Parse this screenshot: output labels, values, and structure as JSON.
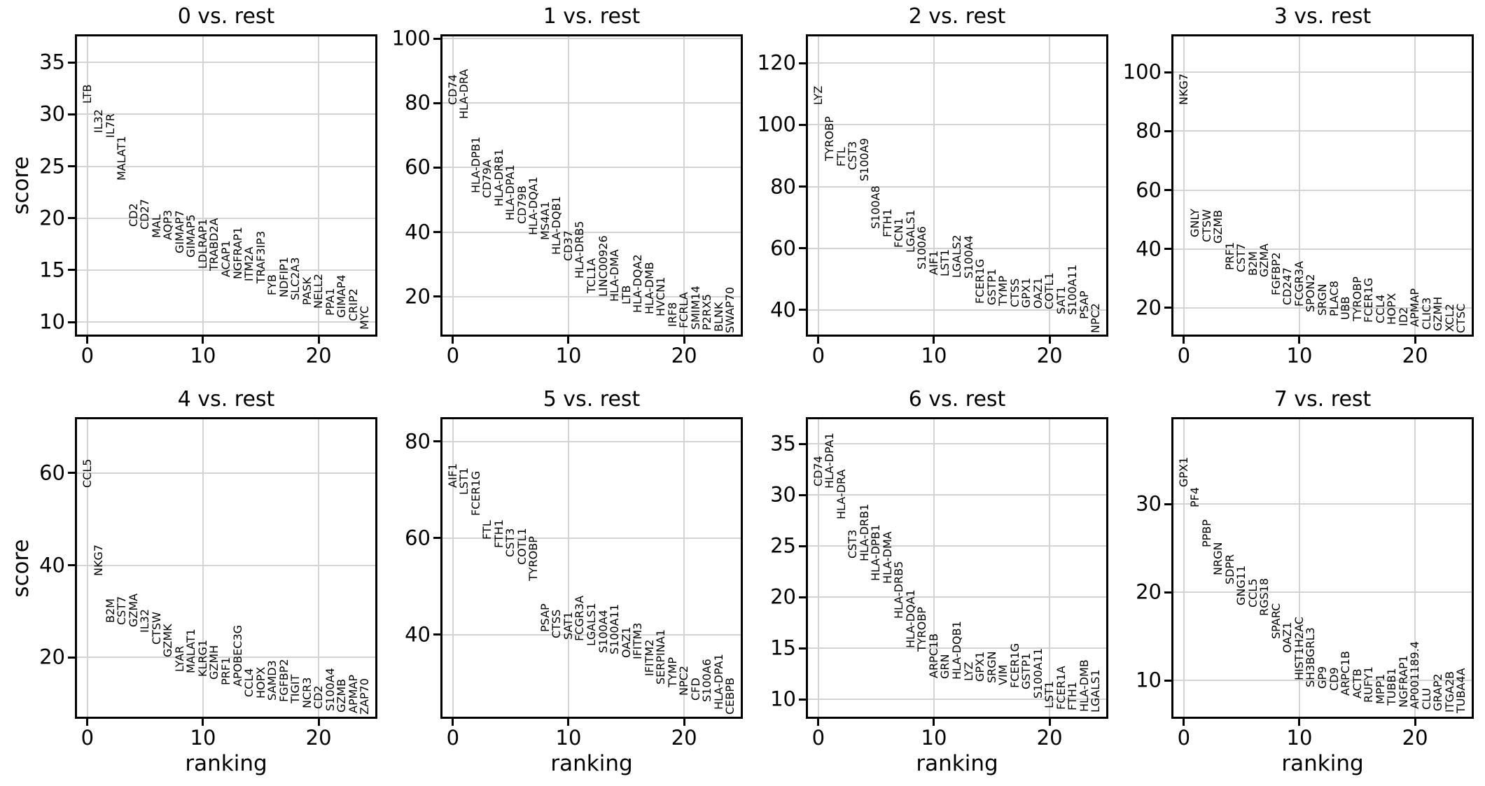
{
  "figure": {
    "background": "#ffffff",
    "text_color": "#000000",
    "grid_color": "#d3d3d3",
    "spine_color": "#000000"
  },
  "axis_labels": {
    "ylabel": "score",
    "xlabel": "ranking"
  },
  "chart_data": [
    {
      "type": "scatter",
      "marker": "text-labels",
      "title": "0 vs. rest",
      "xlabel": "",
      "ylabel": "score",
      "grid": true,
      "xticks": [
        0,
        10,
        20
      ],
      "yticks": [
        10,
        15,
        20,
        25,
        30,
        35
      ],
      "xlim": [
        -0.9,
        24.9
      ],
      "ylim": [
        8.8,
        37.5
      ],
      "genes": [
        "LTB",
        "IL32",
        "IL7R",
        "MALAT1",
        "CD2",
        "CD27",
        "MAL",
        "AQP3",
        "GIMAP7",
        "GIMAP5",
        "LDLRAP1",
        "TRABD2A",
        "ACAP1",
        "NGFRAP1",
        "ITM2A",
        "TRAF3IP3",
        "FYB",
        "NDFIP1",
        "SLC2A3",
        "PASK",
        "NELL2",
        "PPA1",
        "GIMAP4",
        "CRIP2",
        "MYC"
      ],
      "scores": [
        31.0,
        28.2,
        27.7,
        23.6,
        19.2,
        18.9,
        18.1,
        17.9,
        16.6,
        16.2,
        15.1,
        14.9,
        14.3,
        14.1,
        13.9,
        13.7,
        12.6,
        12.4,
        12.1,
        11.6,
        11.3,
        10.6,
        10.4,
        10.1,
        9.3
      ]
    },
    {
      "type": "scatter",
      "marker": "text-labels",
      "title": "1 vs. rest",
      "xlabel": "",
      "ylabel": "",
      "grid": true,
      "xticks": [
        0,
        10,
        20
      ],
      "yticks": [
        20,
        40,
        60,
        80,
        100
      ],
      "xlim": [
        -0.9,
        24.9
      ],
      "ylim": [
        8.2,
        100.7
      ],
      "genes": [
        "CD74",
        "HLA-DRA",
        "HLA-DPB1",
        "CD79A",
        "HLA-DRB1",
        "HLA-DPA1",
        "CD79B",
        "HLA-DQA1",
        "MS4A1",
        "HLA-DQB1",
        "CD37",
        "HLA-DRB5",
        "TCL1A",
        "LINC00926",
        "HLA-DMA",
        "LTB",
        "HLA-DQA2",
        "HLA-DMB",
        "HVCN1",
        "IRF8",
        "FCRLA",
        "SMIM14",
        "P2RX5",
        "BLNK",
        "SWAP70"
      ],
      "scores": [
        79.5,
        75.0,
        52.0,
        50.5,
        48.0,
        43.5,
        42.5,
        39.0,
        37.5,
        33.0,
        31.0,
        25.5,
        21.0,
        20.0,
        18.5,
        17.5,
        15.0,
        14.6,
        13.9,
        10.6,
        10.2,
        9.8,
        9.4,
        9.0,
        8.7
      ]
    },
    {
      "type": "scatter",
      "marker": "text-labels",
      "title": "2 vs. rest",
      "xlabel": "",
      "ylabel": "",
      "grid": true,
      "xticks": [
        0,
        10,
        20
      ],
      "yticks": [
        40,
        60,
        80,
        100,
        120
      ],
      "xlim": [
        -0.9,
        24.9
      ],
      "ylim": [
        32.0,
        128.7
      ],
      "genes": [
        "LYZ",
        "TYROBP",
        "FTL",
        "CST3",
        "S100A9",
        "S100A8",
        "FTH1",
        "FCN1",
        "LGALS1",
        "S100A6",
        "AIF1",
        "LST1",
        "LGALS2",
        "S100A4",
        "FCER1G",
        "GSTP1",
        "TYMP",
        "CTSS",
        "GPX1",
        "OAZ1",
        "COTL1",
        "SAT1",
        "S100A11",
        "PSAP",
        "NPC2"
      ],
      "scores": [
        106.5,
        88.3,
        86.4,
        85.3,
        81.8,
        66.2,
        63.5,
        60.2,
        58.5,
        53.2,
        51.3,
        50.9,
        50.5,
        50.1,
        41.9,
        41.5,
        41.2,
        40.8,
        40.6,
        40.4,
        40.1,
        38.6,
        38.3,
        37.0,
        32.5
      ]
    },
    {
      "type": "scatter",
      "marker": "text-labels",
      "title": "3 vs. rest",
      "xlabel": "",
      "ylabel": "",
      "grid": true,
      "xticks": [
        0,
        10,
        20
      ],
      "yticks": [
        20,
        40,
        60,
        80,
        100
      ],
      "xlim": [
        -0.9,
        24.9
      ],
      "ylim": [
        10.9,
        112.2
      ],
      "genes": [
        "NKG7",
        "GNLY",
        "CTSW",
        "GZMB",
        "PRF1",
        "CST7",
        "B2M",
        "GZMA",
        "FGFBP2",
        "CD247",
        "FCGR3A",
        "SPON2",
        "SRGN",
        "PLAC8",
        "UBB",
        "TYROBP",
        "FCER1G",
        "CCL4",
        "HOPX",
        "ID2",
        "APMAP",
        "CLIC3",
        "GZMH",
        "XCL2",
        "CTSC"
      ],
      "scores": [
        88.9,
        43.9,
        42.3,
        41.9,
        32.8,
        32.0,
        30.8,
        30.4,
        24.1,
        20.9,
        20.4,
        18.6,
        17.4,
        17.0,
        15.8,
        15.4,
        15.0,
        14.6,
        14.2,
        13.8,
        13.4,
        12.6,
        12.2,
        11.8,
        11.4
      ]
    },
    {
      "type": "scatter",
      "marker": "text-labels",
      "title": "4 vs. rest",
      "xlabel": "ranking",
      "ylabel": "score",
      "grid": true,
      "xticks": [
        0,
        10,
        20
      ],
      "yticks": [
        20,
        40,
        60
      ],
      "xlim": [
        -0.9,
        24.9
      ],
      "ylim": [
        7.1,
        71.7
      ],
      "genes": [
        "CCL5",
        "NKG7",
        "B2M",
        "CST7",
        "GZMA",
        "IL32",
        "CTSW",
        "GZMK",
        "LYAR",
        "MALAT1",
        "KLRG1",
        "GZMH",
        "PRF1",
        "APOBEC3G",
        "CCL4",
        "HOPX",
        "SAMD3",
        "FGFBP2",
        "TIGIT",
        "NCR3",
        "CD2",
        "S100A4",
        "GZMB",
        "APMAP",
        "ZAP70"
      ],
      "scores": [
        56.8,
        37.6,
        27.5,
        27.0,
        26.6,
        25.3,
        22.7,
        20.0,
        16.8,
        16.6,
        15.8,
        15.2,
        13.9,
        13.6,
        11.4,
        11.0,
        10.6,
        10.3,
        10.0,
        8.9,
        8.7,
        8.3,
        8.0,
        7.8,
        7.6
      ]
    },
    {
      "type": "scatter",
      "marker": "text-labels",
      "title": "5 vs. rest",
      "xlabel": "ranking",
      "ylabel": "",
      "grid": true,
      "xticks": [
        0,
        10,
        20
      ],
      "yticks": [
        40,
        60,
        80
      ],
      "xlim": [
        -0.9,
        24.9
      ],
      "ylim": [
        23.0,
        84.6
      ],
      "genes": [
        "AIF1",
        "LST1",
        "FCER1G",
        "FTL",
        "FTH1",
        "CST3",
        "COTL1",
        "TYROBP",
        "PSAP",
        "CTSS",
        "SAT1",
        "FCGR3A",
        "LGALS1",
        "S100A4",
        "S100A11",
        "OAZ1",
        "IFITM3",
        "IFITM2",
        "SERPINA1",
        "TYMP",
        "NPC2",
        "CFD",
        "S100A6",
        "HLA-DPA1",
        "CEBPB"
      ],
      "scores": [
        70.4,
        68.9,
        64.6,
        59.7,
        58.0,
        56.0,
        54.4,
        51.1,
        40.5,
        39.2,
        39.0,
        38.7,
        37.7,
        36.2,
        35.9,
        35.2,
        34.9,
        31.4,
        29.6,
        29.1,
        27.3,
        26.3,
        26.1,
        24.5,
        23.5
      ]
    },
    {
      "type": "scatter",
      "marker": "text-labels",
      "title": "6 vs. rest",
      "xlabel": "ranking",
      "ylabel": "",
      "grid": true,
      "xticks": [
        0,
        10,
        20
      ],
      "yticks": [
        10,
        15,
        20,
        25,
        30,
        35
      ],
      "xlim": [
        -0.9,
        24.9
      ],
      "ylim": [
        8.3,
        37.4
      ],
      "genes": [
        "CD74",
        "HLA-DPA1",
        "HLA-DRA",
        "CST3",
        "HLA-DRB1",
        "HLA-DPB1",
        "HLA-DMA",
        "HLA-DRB5",
        "HLA-DQA1",
        "TYROBP",
        "ARPC1B",
        "GRN",
        "HLA-DQB1",
        "LYZ",
        "GPX1",
        "SRGN",
        "VIM",
        "FCER1G",
        "GSTP1",
        "S100A11",
        "LST1",
        "FCER1A",
        "FTH1",
        "HLA-DMB",
        "LGALS1"
      ],
      "scores": [
        30.8,
        30.6,
        27.6,
        23.8,
        23.5,
        21.6,
        21.3,
        17.9,
        15.0,
        14.7,
        12.1,
        12.0,
        11.9,
        11.8,
        11.7,
        11.6,
        11.4,
        11.1,
        11.0,
        10.1,
        9.1,
        9.0,
        8.9,
        8.8,
        8.7
      ]
    },
    {
      "type": "scatter",
      "marker": "text-labels",
      "title": "7 vs. rest",
      "xlabel": "ranking",
      "ylabel": "",
      "grid": true,
      "xticks": [
        0,
        10,
        20
      ],
      "yticks": [
        10,
        20,
        30
      ],
      "xlim": [
        -0.9,
        24.9
      ],
      "ylim": [
        5.9,
        39.6
      ],
      "genes": [
        "GPX1",
        "PF4",
        "PPBP",
        "NRGN",
        "SDPR",
        "GNG11",
        "CCL5",
        "RGS18",
        "SPARC",
        "OAZ1",
        "HIST1H2AC",
        "SH3BGRL3",
        "GP9",
        "CD9",
        "ARPC1B",
        "ACTB",
        "RUFY1",
        "MPP1",
        "TUBB1",
        "NGFRAP1",
        "AP001189.4",
        "CLU",
        "GRAP2",
        "ITGA2B",
        "TUBA4A"
      ],
      "scores": [
        31.9,
        29.6,
        25.1,
        21.9,
        20.9,
        18.5,
        18.3,
        17.3,
        14.7,
        13.1,
        10.0,
        9.2,
        9.1,
        8.8,
        8.3,
        8.0,
        7.5,
        7.3,
        7.2,
        6.9,
        6.8,
        6.7,
        6.5,
        6.4,
        6.3
      ]
    }
  ]
}
